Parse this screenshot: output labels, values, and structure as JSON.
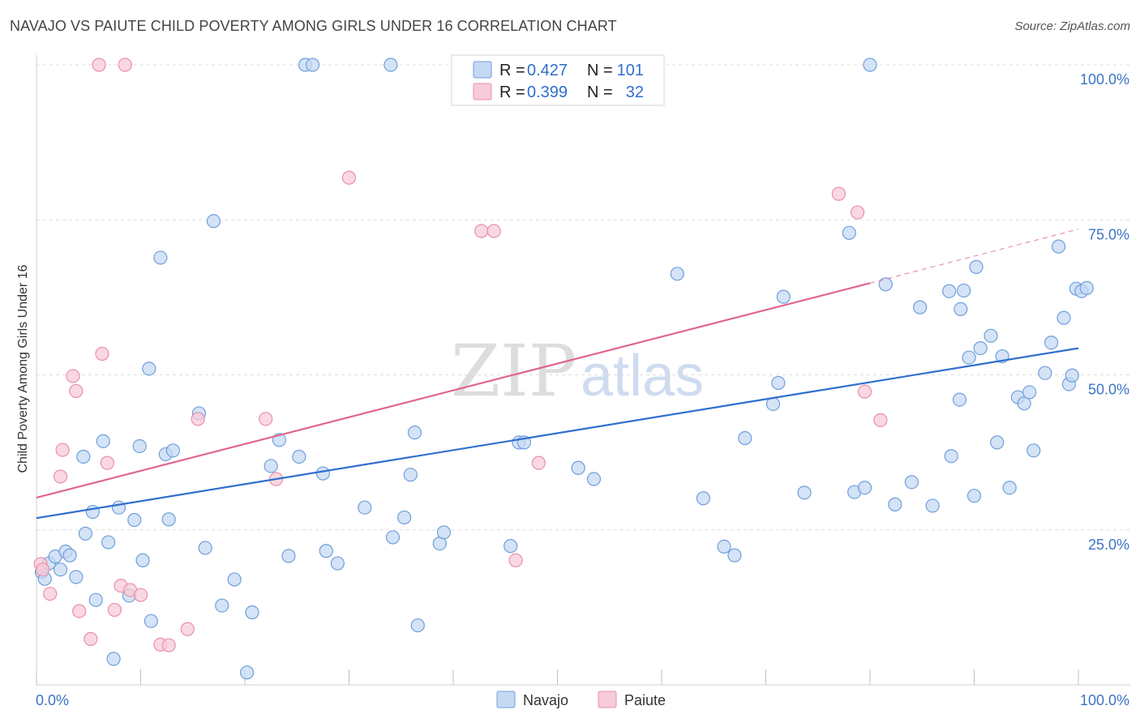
{
  "title": "NAVAJO VS PAIUTE CHILD POVERTY AMONG GIRLS UNDER 16 CORRELATION CHART",
  "source": "Source: ZipAtlas.com",
  "watermark": {
    "part1": "ZIP",
    "part2": "atlas"
  },
  "colors": {
    "navajo_fill": "#c5d9f3",
    "navajo_stroke": "#6f9fdc",
    "navajo_line": "#2f6fce",
    "paiute_fill": "#f8cbd8",
    "paiute_stroke": "#e88fab",
    "paiute_line": "#e0668c",
    "tick_label": "#3d74c4",
    "grid": "#dddddd"
  },
  "legend_top": [
    {
      "r_label": "R =",
      "r_value": "0.427",
      "n_label": "N =",
      "n_value": "101"
    },
    {
      "r_label": "R =",
      "r_value": "0.399",
      "n_label": "N =",
      "n_value": "32"
    }
  ],
  "chart_data": {
    "type": "scatter",
    "title": "NAVAJO VS PAIUTE CHILD POVERTY AMONG GIRLS UNDER 16 CORRELATION CHART",
    "xlabel": "",
    "ylabel": "Child Poverty Among Girls Under 16",
    "xlim": [
      0,
      100
    ],
    "ylim": [
      0,
      100
    ],
    "x_tick_labels": [
      "0.0%",
      "100.0%"
    ],
    "y_tick_labels": [
      "25.0%",
      "50.0%",
      "75.0%",
      "100.0%"
    ],
    "y_tick_values": [
      25,
      50,
      75,
      100
    ],
    "grid": "horizontal dashed",
    "legend_placement": "top-center and bottom-center",
    "series": [
      {
        "name": "Navajo",
        "r": 0.427,
        "n": 101,
        "trend": {
          "x": [
            0,
            100
          ],
          "y": [
            26.9,
            54.3
          ]
        },
        "points": [
          [
            0.5,
            18.2
          ],
          [
            0.8,
            17.1
          ],
          [
            1.2,
            19.6
          ],
          [
            1.8,
            20.7
          ],
          [
            2.3,
            18.6
          ],
          [
            2.8,
            21.5
          ],
          [
            3.2,
            20.9
          ],
          [
            3.8,
            17.4
          ],
          [
            4.5,
            36.8
          ],
          [
            4.7,
            24.4
          ],
          [
            5.4,
            27.9
          ],
          [
            5.7,
            13.7
          ],
          [
            6.4,
            39.3
          ],
          [
            6.9,
            23.0
          ],
          [
            7.4,
            4.2
          ],
          [
            7.9,
            28.6
          ],
          [
            8.9,
            14.4
          ],
          [
            9.4,
            26.6
          ],
          [
            9.9,
            38.5
          ],
          [
            10.2,
            20.1
          ],
          [
            10.8,
            51.0
          ],
          [
            11.0,
            10.3
          ],
          [
            11.9,
            68.9
          ],
          [
            12.4,
            37.2
          ],
          [
            12.7,
            26.7
          ],
          [
            13.1,
            37.8
          ],
          [
            15.6,
            43.8
          ],
          [
            16.2,
            22.1
          ],
          [
            17.0,
            74.8
          ],
          [
            17.8,
            12.8
          ],
          [
            19.0,
            17.0
          ],
          [
            20.2,
            2.0
          ],
          [
            20.7,
            11.7
          ],
          [
            22.5,
            35.3
          ],
          [
            23.3,
            39.5
          ],
          [
            24.2,
            20.8
          ],
          [
            25.2,
            36.8
          ],
          [
            25.8,
            100.0
          ],
          [
            26.5,
            100.0
          ],
          [
            27.5,
            34.1
          ],
          [
            27.8,
            21.6
          ],
          [
            28.9,
            19.6
          ],
          [
            31.5,
            28.6
          ],
          [
            34.0,
            100.0
          ],
          [
            34.2,
            23.8
          ],
          [
            35.3,
            27.0
          ],
          [
            35.9,
            33.9
          ],
          [
            36.3,
            40.7
          ],
          [
            36.6,
            9.6
          ],
          [
            38.7,
            22.8
          ],
          [
            39.1,
            24.6
          ],
          [
            40.5,
            100.0
          ],
          [
            45.5,
            22.4
          ],
          [
            46.3,
            39.1
          ],
          [
            46.8,
            39.1
          ],
          [
            52.0,
            35.0
          ],
          [
            53.5,
            33.2
          ],
          [
            61.5,
            66.3
          ],
          [
            64.0,
            30.1
          ],
          [
            66.0,
            22.3
          ],
          [
            67.0,
            20.9
          ],
          [
            68.0,
            39.8
          ],
          [
            70.7,
            45.3
          ],
          [
            71.2,
            48.7
          ],
          [
            71.7,
            62.6
          ],
          [
            73.7,
            31.0
          ],
          [
            78.0,
            72.9
          ],
          [
            78.5,
            31.1
          ],
          [
            79.5,
            31.8
          ],
          [
            80.0,
            100.0
          ],
          [
            81.5,
            64.6
          ],
          [
            82.4,
            29.1
          ],
          [
            84.0,
            32.7
          ],
          [
            84.8,
            60.9
          ],
          [
            86.0,
            28.9
          ],
          [
            87.6,
            63.5
          ],
          [
            87.8,
            36.9
          ],
          [
            88.6,
            46.0
          ],
          [
            88.7,
            60.6
          ],
          [
            89.0,
            63.6
          ],
          [
            89.5,
            52.8
          ],
          [
            90.0,
            30.5
          ],
          [
            90.2,
            67.4
          ],
          [
            90.6,
            54.3
          ],
          [
            91.6,
            56.3
          ],
          [
            92.2,
            39.1
          ],
          [
            92.7,
            53.0
          ],
          [
            93.4,
            31.8
          ],
          [
            94.2,
            46.4
          ],
          [
            94.8,
            45.4
          ],
          [
            95.3,
            47.2
          ],
          [
            95.7,
            37.8
          ],
          [
            96.8,
            50.3
          ],
          [
            97.4,
            55.2
          ],
          [
            98.1,
            70.7
          ],
          [
            98.6,
            59.2
          ],
          [
            99.1,
            48.5
          ],
          [
            99.4,
            49.9
          ],
          [
            99.8,
            63.9
          ],
          [
            100.3,
            63.5
          ],
          [
            100.8,
            64.0
          ]
        ]
      },
      {
        "name": "Paiute",
        "r": 0.399,
        "n": 32,
        "trend": {
          "x": [
            0,
            80
          ],
          "y": [
            30.2,
            64.8
          ],
          "dashed_to": {
            "x": 100,
            "y": 73.5
          }
        },
        "points": [
          [
            0.4,
            19.5
          ],
          [
            0.6,
            18.6
          ],
          [
            1.3,
            14.7
          ],
          [
            2.3,
            33.6
          ],
          [
            2.5,
            37.9
          ],
          [
            3.5,
            49.8
          ],
          [
            3.8,
            47.4
          ],
          [
            4.1,
            11.9
          ],
          [
            5.2,
            7.4
          ],
          [
            6.0,
            100.0
          ],
          [
            6.3,
            53.4
          ],
          [
            6.8,
            35.8
          ],
          [
            7.5,
            12.1
          ],
          [
            8.1,
            16.0
          ],
          [
            8.5,
            100.0
          ],
          [
            9.0,
            15.3
          ],
          [
            10.0,
            14.5
          ],
          [
            11.9,
            6.5
          ],
          [
            12.7,
            6.4
          ],
          [
            14.5,
            9.0
          ],
          [
            15.5,
            42.9
          ],
          [
            22.0,
            42.9
          ],
          [
            23.0,
            33.2
          ],
          [
            30.0,
            81.8
          ],
          [
            42.7,
            73.2
          ],
          [
            43.9,
            73.2
          ],
          [
            46.0,
            20.1
          ],
          [
            48.2,
            35.8
          ],
          [
            77.0,
            79.2
          ],
          [
            78.8,
            76.2
          ],
          [
            79.5,
            47.3
          ],
          [
            81.0,
            42.7
          ]
        ]
      }
    ]
  },
  "legend_bottom": [
    {
      "label": "Navajo"
    },
    {
      "label": "Paiute"
    }
  ]
}
